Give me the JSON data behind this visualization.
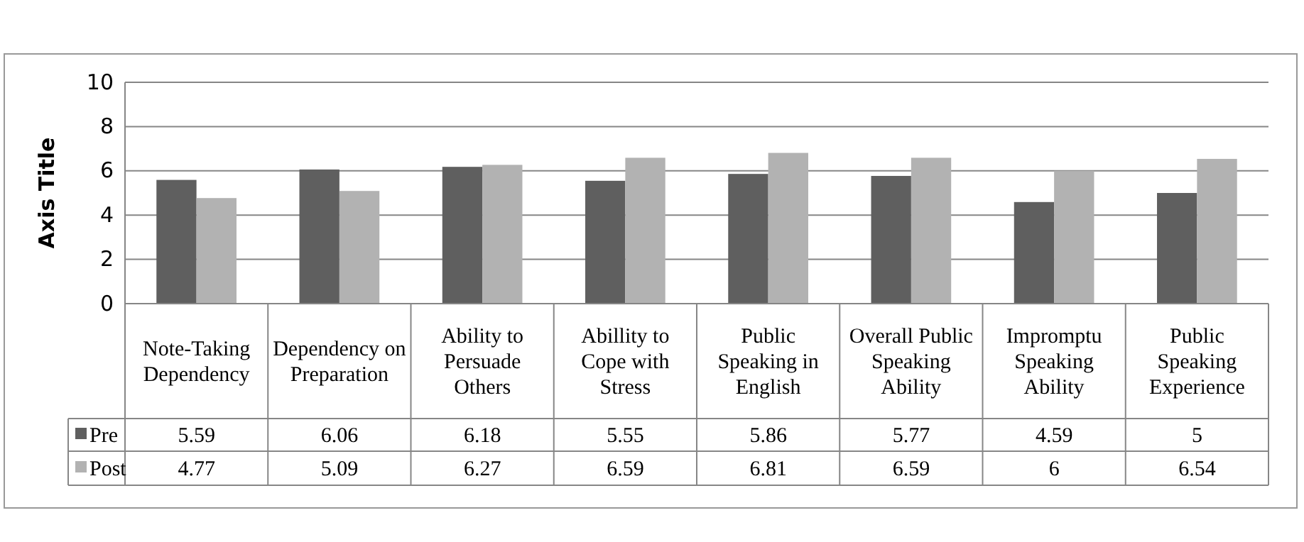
{
  "chart_data": {
    "type": "bar",
    "ylabel": "Axis Title",
    "categories": [
      "Note-Taking Dependency",
      "Dependency on Preparation",
      "Ability to Persuade Others",
      "Abillity to Cope with Stress",
      "Public Speaking in English",
      "Overall Public Speaking Ability",
      "Impromptu Speaking Ability",
      "Public Speaking Experience"
    ],
    "series": [
      {
        "name": "Pre",
        "color": "#5f5f5f",
        "values": [
          5.59,
          6.06,
          6.18,
          5.55,
          5.86,
          5.77,
          4.59,
          5
        ]
      },
      {
        "name": "Post",
        "color": "#b2b2b2",
        "values": [
          4.77,
          5.09,
          6.27,
          6.59,
          6.81,
          6.59,
          6,
          6.54
        ]
      }
    ],
    "ylim": [
      0,
      10
    ],
    "yticks": [
      0,
      2,
      4,
      6,
      8,
      10
    ],
    "grid": "y",
    "data_labels": true,
    "legend": "bottom left"
  }
}
